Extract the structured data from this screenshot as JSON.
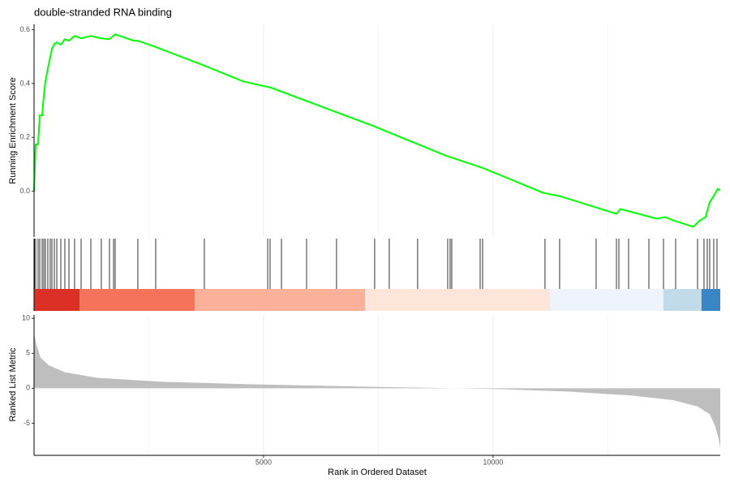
{
  "chart_data": [
    {
      "type": "line",
      "title": "double-stranded RNA binding",
      "ylabel": "Running Enrichment Score",
      "color": "#00ff00",
      "xlim": [
        0,
        14950
      ],
      "ylim": [
        -0.17,
        0.62
      ],
      "yticks": [
        {
          "value": 0,
          "label": "0.0"
        },
        0.2,
        0.4,
        0.6
      ],
      "xticks": [
        5000,
        10000
      ],
      "xminor": [
        2500,
        7500,
        12500
      ],
      "grid": true,
      "x": [
        0,
        35,
        88,
        124,
        177,
        212,
        247,
        300,
        353,
        389,
        442,
        495,
        583,
        671,
        760,
        883,
        1025,
        1237,
        1466,
        1643,
        1767,
        2173,
        2261,
        2615,
        3675,
        4558,
        5177,
        5972,
        7385,
        8975,
        9770,
        11095,
        11449,
        12244,
        12686,
        12774,
        13039,
        13569,
        13746,
        13922,
        14364,
        14488,
        14629,
        14717,
        14806,
        14894,
        14947
      ],
      "values": [
        0,
        0.174,
        0.174,
        0.282,
        0.282,
        0.354,
        0.408,
        0.456,
        0.498,
        0.529,
        0.547,
        0.553,
        0.544,
        0.565,
        0.559,
        0.577,
        0.568,
        0.577,
        0.568,
        0.565,
        0.583,
        0.559,
        0.559,
        0.538,
        0.469,
        0.408,
        0.384,
        0.333,
        0.243,
        0.132,
        0.087,
        -0.006,
        -0.018,
        -0.06,
        -0.084,
        -0.066,
        -0.078,
        -0.102,
        -0.096,
        -0.108,
        -0.132,
        -0.111,
        -0.096,
        -0.042,
        -0.018,
        0.009,
        0.003
      ]
    },
    {
      "type": "rug",
      "color": "#000000",
      "xlim": [
        0,
        14950
      ],
      "x": [
        10,
        35,
        88,
        124,
        177,
        212,
        247,
        300,
        353,
        389,
        442,
        495,
        583,
        671,
        760,
        883,
        1025,
        1237,
        1466,
        1643,
        1732,
        1767,
        2261,
        2650,
        3710,
        5090,
        5142,
        5390,
        5937,
        6590,
        7421,
        7739,
        8357,
        9012,
        9065,
        9100,
        9719,
        9772,
        11132,
        11450,
        12246,
        12688,
        12741,
        12953,
        13395,
        13713,
        13978,
        14455,
        14596,
        14667,
        14720,
        14808,
        14879
      ],
      "color_bar": [
        {
          "start": 0,
          "end": 990,
          "color": "#dc2f26"
        },
        {
          "start": 990,
          "end": 3500,
          "color": "#f4735a"
        },
        {
          "start": 3500,
          "end": 7210,
          "color": "#fbb09a"
        },
        {
          "start": 7210,
          "end": 11240,
          "color": "#fde5da"
        },
        {
          "start": 11240,
          "end": 13710,
          "color": "#eef3fc"
        },
        {
          "start": 13710,
          "end": 14540,
          "color": "#c2dbe8"
        },
        {
          "start": 14540,
          "end": 14950,
          "color": "#3a86c4"
        }
      ]
    },
    {
      "type": "area",
      "ylabel": "Ranked List Metric",
      "xlabel": "Rank in Ordered Dataset",
      "color": "#bebebe",
      "xlim": [
        0,
        14950
      ],
      "ylim": [
        -9.6,
        10.5
      ],
      "yticks": [
        -5,
        0,
        5,
        10
      ],
      "xticks": [
        5000,
        10000
      ],
      "xminor": [
        2500,
        7500,
        12500
      ],
      "grid": true,
      "x": [
        0,
        53,
        141,
        318,
        671,
        1378,
        2791,
        4558,
        7209,
        10001,
        11626,
        13039,
        13922,
        14455,
        14720,
        14844,
        14914,
        14950
      ],
      "values": [
        7.9,
        6.2,
        4.4,
        3.3,
        2.3,
        1.5,
        0.93,
        0.6,
        0.23,
        -0.1,
        -0.46,
        -1.05,
        -1.7,
        -2.6,
        -3.7,
        -5.5,
        -7.2,
        -8.6
      ]
    }
  ]
}
